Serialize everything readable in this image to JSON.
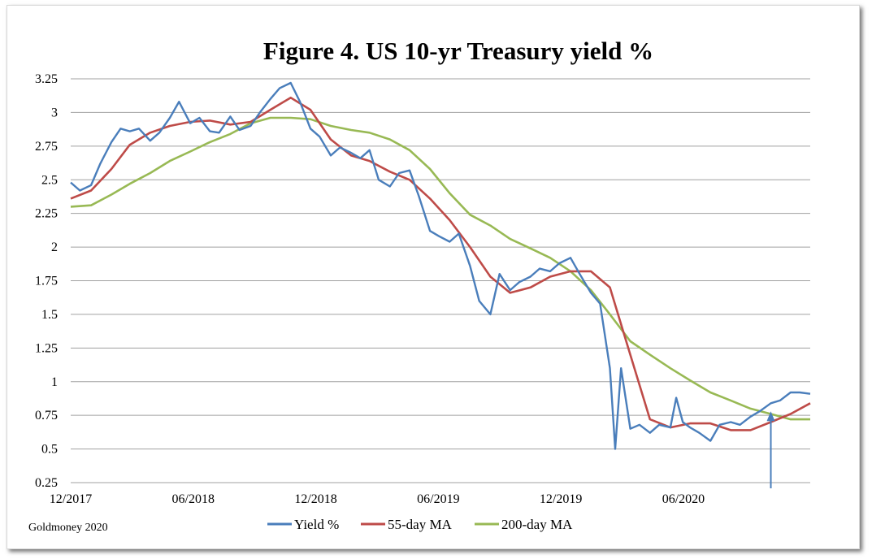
{
  "chart_data": {
    "type": "line",
    "title": "Figure 4. US 10-yr Treasury yield %",
    "source": "Goldmoney 2020",
    "xlabel": "",
    "ylabel": "",
    "x_tick_labels": [
      "12/2017",
      "06/2018",
      "12/2018",
      "06/2019",
      "12/2019",
      "06/2020"
    ],
    "y_ticks": [
      "0.25",
      "0.5",
      "0.75",
      "1",
      "1.25",
      "1.5",
      "1.75",
      "2",
      "2.25",
      "2.5",
      "2.75",
      "3",
      "3.25"
    ],
    "ylim": [
      0.25,
      3.25
    ],
    "xlim": [
      "2017-12-01",
      "2020-12-31"
    ],
    "grid": "horizontal",
    "legend_position": "bottom",
    "colors": {
      "yield": "#4a7ebb",
      "ma55": "#be4b48",
      "ma200": "#98b954",
      "grid": "#a0a0a0",
      "arrow": "#4a7ebb"
    },
    "annotation": {
      "type": "arrow",
      "x": "2020-11-01",
      "y": 0.78
    },
    "series": [
      {
        "name": "Yield %",
        "x": [
          "2017-12-01",
          "2017-12-15",
          "2018-01-01",
          "2018-01-15",
          "2018-02-01",
          "2018-02-15",
          "2018-03-01",
          "2018-03-15",
          "2018-04-01",
          "2018-04-15",
          "2018-05-01",
          "2018-05-15",
          "2018-06-01",
          "2018-06-15",
          "2018-07-01",
          "2018-07-15",
          "2018-08-01",
          "2018-08-15",
          "2018-09-01",
          "2018-09-15",
          "2018-10-01",
          "2018-10-15",
          "2018-11-01",
          "2018-11-15",
          "2018-12-01",
          "2018-12-15",
          "2019-01-01",
          "2019-01-15",
          "2019-02-01",
          "2019-02-15",
          "2019-03-01",
          "2019-03-15",
          "2019-04-01",
          "2019-04-15",
          "2019-05-01",
          "2019-05-15",
          "2019-06-01",
          "2019-06-15",
          "2019-07-01",
          "2019-07-15",
          "2019-08-01",
          "2019-08-15",
          "2019-09-01",
          "2019-09-15",
          "2019-10-01",
          "2019-10-15",
          "2019-11-01",
          "2019-11-15",
          "2019-12-01",
          "2019-12-15",
          "2020-01-01",
          "2020-01-15",
          "2020-02-01",
          "2020-02-15",
          "2020-03-01",
          "2020-03-09",
          "2020-03-18",
          "2020-04-01",
          "2020-04-15",
          "2020-05-01",
          "2020-05-15",
          "2020-06-01",
          "2020-06-10",
          "2020-06-20",
          "2020-07-01",
          "2020-07-15",
          "2020-08-01",
          "2020-08-15",
          "2020-09-01",
          "2020-09-15",
          "2020-10-01",
          "2020-10-15",
          "2020-11-01",
          "2020-11-15",
          "2020-12-01",
          "2020-12-15",
          "2020-12-31"
        ],
        "values": [
          2.48,
          2.42,
          2.46,
          2.62,
          2.78,
          2.88,
          2.86,
          2.88,
          2.79,
          2.85,
          2.96,
          3.08,
          2.92,
          2.96,
          2.86,
          2.85,
          2.97,
          2.87,
          2.9,
          3.0,
          3.1,
          3.18,
          3.22,
          3.08,
          2.88,
          2.82,
          2.68,
          2.74,
          2.7,
          2.66,
          2.72,
          2.5,
          2.45,
          2.55,
          2.57,
          2.38,
          2.12,
          2.08,
          2.04,
          2.1,
          1.86,
          1.6,
          1.5,
          1.8,
          1.68,
          1.74,
          1.78,
          1.84,
          1.82,
          1.88,
          1.92,
          1.8,
          1.66,
          1.58,
          1.1,
          0.5,
          1.1,
          0.65,
          0.68,
          0.62,
          0.68,
          0.66,
          0.88,
          0.7,
          0.66,
          0.62,
          0.56,
          0.68,
          0.7,
          0.68,
          0.74,
          0.78,
          0.84,
          0.86,
          0.92,
          0.92,
          0.91
        ]
      },
      {
        "name": "55-day MA",
        "x": [
          "2017-12-01",
          "2018-01-01",
          "2018-02-01",
          "2018-03-01",
          "2018-04-01",
          "2018-05-01",
          "2018-06-01",
          "2018-07-01",
          "2018-08-01",
          "2018-09-01",
          "2018-10-01",
          "2018-11-01",
          "2018-12-01",
          "2019-01-01",
          "2019-02-01",
          "2019-03-01",
          "2019-04-01",
          "2019-05-01",
          "2019-06-01",
          "2019-07-01",
          "2019-08-01",
          "2019-09-01",
          "2019-10-01",
          "2019-11-01",
          "2019-12-01",
          "2020-01-01",
          "2020-02-01",
          "2020-03-01",
          "2020-04-01",
          "2020-05-01",
          "2020-06-01",
          "2020-07-01",
          "2020-08-01",
          "2020-09-01",
          "2020-10-01",
          "2020-11-01",
          "2020-12-01",
          "2020-12-31"
        ],
        "values": [
          2.36,
          2.42,
          2.58,
          2.76,
          2.85,
          2.9,
          2.93,
          2.94,
          2.91,
          2.93,
          3.02,
          3.11,
          3.02,
          2.8,
          2.68,
          2.64,
          2.56,
          2.5,
          2.36,
          2.2,
          2.0,
          1.78,
          1.66,
          1.7,
          1.78,
          1.82,
          1.82,
          1.7,
          1.2,
          0.72,
          0.66,
          0.69,
          0.69,
          0.64,
          0.64,
          0.7,
          0.76,
          0.84
        ]
      },
      {
        "name": "200-day MA",
        "x": [
          "2017-12-01",
          "2018-01-01",
          "2018-02-01",
          "2018-03-01",
          "2018-04-01",
          "2018-05-01",
          "2018-06-01",
          "2018-07-01",
          "2018-08-01",
          "2018-09-01",
          "2018-10-01",
          "2018-11-01",
          "2018-12-01",
          "2019-01-01",
          "2019-02-01",
          "2019-03-01",
          "2019-04-01",
          "2019-05-01",
          "2019-06-01",
          "2019-07-01",
          "2019-08-01",
          "2019-09-01",
          "2019-10-01",
          "2019-11-01",
          "2019-12-01",
          "2020-01-01",
          "2020-02-01",
          "2020-03-01",
          "2020-04-01",
          "2020-05-01",
          "2020-06-01",
          "2020-07-01",
          "2020-08-01",
          "2020-09-01",
          "2020-10-01",
          "2020-11-01",
          "2020-12-01",
          "2020-12-31"
        ],
        "values": [
          2.3,
          2.31,
          2.39,
          2.47,
          2.55,
          2.64,
          2.71,
          2.78,
          2.84,
          2.92,
          2.96,
          2.96,
          2.95,
          2.9,
          2.87,
          2.85,
          2.8,
          2.72,
          2.58,
          2.4,
          2.24,
          2.16,
          2.06,
          1.99,
          1.92,
          1.82,
          1.68,
          1.5,
          1.3,
          1.2,
          1.1,
          1.01,
          0.92,
          0.86,
          0.8,
          0.76,
          0.72,
          0.72
        ]
      }
    ]
  }
}
